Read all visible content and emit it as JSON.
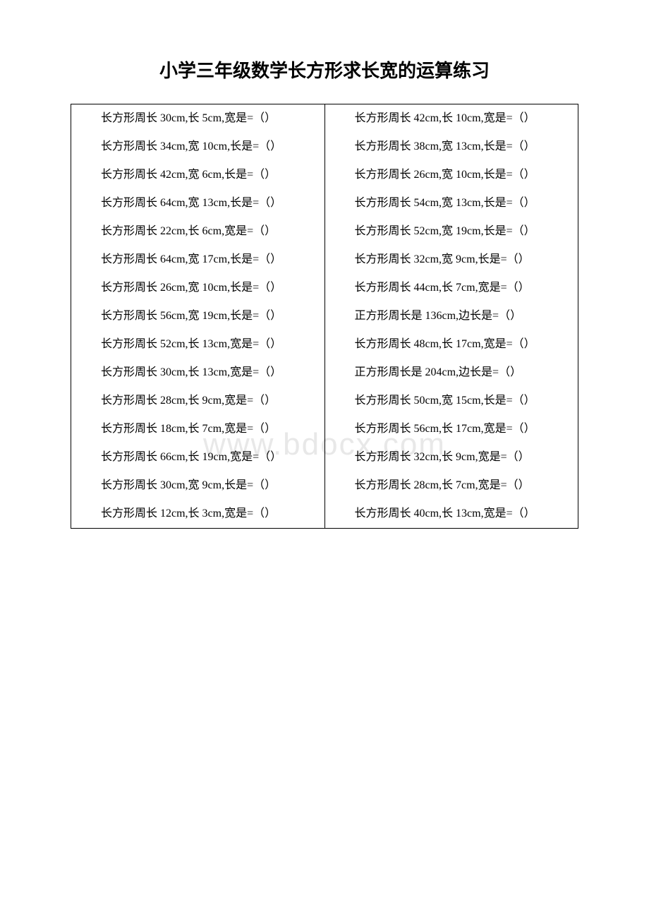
{
  "title": "小学三年级数学长方形求长宽的运算练习",
  "watermark": "www.bdocx.com",
  "rows": [
    {
      "left": "长方形周长 30cm,长 5cm,宽是=（）",
      "right": "长方形周长 42cm,长 10cm,宽是=（）"
    },
    {
      "left": "长方形周长 34cm,宽 10cm,长是=（）",
      "right": "长方形周长 38cm,宽 13cm,长是=（）"
    },
    {
      "left": "长方形周长 42cm,宽 6cm,长是=（）",
      "right": "长方形周长 26cm,宽 10cm,长是=（）"
    },
    {
      "left": "长方形周长 64cm,宽 13cm,长是=（）",
      "right": "长方形周长 54cm,宽 13cm,长是=（）"
    },
    {
      "left": "长方形周长 22cm,长 6cm,宽是=（）",
      "right": "长方形周长 52cm,宽 19cm,长是=（）"
    },
    {
      "left": "长方形周长 64cm,宽 17cm,长是=（）",
      "right": "长方形周长 32cm,宽 9cm,长是=（）"
    },
    {
      "left": "长方形周长 26cm,宽 10cm,长是=（）",
      "right": "长方形周长 44cm,长 7cm,宽是=（）"
    },
    {
      "left": "长方形周长 56cm,宽 19cm,长是=（）",
      "right": "正方形周长是 136cm,边长是=（）"
    },
    {
      "left": "长方形周长 52cm,长 13cm,宽是=（）",
      "right": "长方形周长 48cm,长 17cm,宽是=（）"
    },
    {
      "left": "长方形周长 30cm,长 13cm,宽是=（）",
      "right": "正方形周长是 204cm,边长是=（）"
    },
    {
      "left": "长方形周长 28cm,长 9cm,宽是=（）",
      "right": "长方形周长 50cm,宽 15cm,长是=（）"
    },
    {
      "left": "长方形周长 18cm,长 7cm,宽是=（）",
      "right": "长方形周长 56cm,长 17cm,宽是=（）"
    },
    {
      "left": "长方形周长 66cm,长 19cm,宽是=（）",
      "right": "长方形周长 32cm,长 9cm,宽是=（）"
    },
    {
      "left": "长方形周长 30cm,宽 9cm,长是=（）",
      "right": "长方形周长 28cm,长 7cm,宽是=（）"
    },
    {
      "left": "长方形周长 12cm,长 3cm,宽是=（）",
      "right": "长方形周长 40cm,长 13cm,宽是=（）"
    }
  ]
}
